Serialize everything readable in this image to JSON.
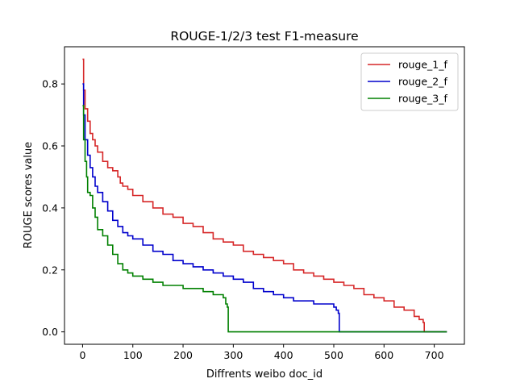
{
  "chart_data": {
    "type": "line",
    "title": "ROUGE-1/2/3 test F1-measure",
    "xlabel": "Diffrents weibo doc_id",
    "ylabel": "ROUGE scores value",
    "xlim": [
      -36,
      760
    ],
    "ylim": [
      -0.04,
      0.92
    ],
    "xticks": [
      0,
      100,
      200,
      300,
      400,
      500,
      600,
      700
    ],
    "yticks": [
      0.0,
      0.2,
      0.4,
      0.6,
      0.8
    ],
    "ytick_labels": [
      "0.0",
      "0.2",
      "0.4",
      "0.6",
      "0.8"
    ],
    "grid": false,
    "legend_position": "top-right",
    "series": [
      {
        "name": "rouge_1_f",
        "color": "#d62728",
        "x": [
          0,
          2,
          5,
          10,
          15,
          20,
          25,
          30,
          40,
          50,
          60,
          70,
          75,
          80,
          90,
          100,
          120,
          140,
          160,
          180,
          200,
          220,
          240,
          260,
          280,
          300,
          320,
          340,
          360,
          380,
          400,
          420,
          440,
          460,
          480,
          500,
          520,
          540,
          560,
          580,
          600,
          620,
          640,
          660,
          670,
          678,
          680,
          725
        ],
        "y": [
          0.88,
          0.78,
          0.72,
          0.68,
          0.64,
          0.62,
          0.6,
          0.58,
          0.55,
          0.53,
          0.52,
          0.5,
          0.48,
          0.47,
          0.46,
          0.44,
          0.42,
          0.4,
          0.38,
          0.37,
          0.35,
          0.34,
          0.32,
          0.3,
          0.29,
          0.28,
          0.26,
          0.25,
          0.24,
          0.23,
          0.22,
          0.2,
          0.19,
          0.18,
          0.17,
          0.16,
          0.15,
          0.14,
          0.12,
          0.11,
          0.1,
          0.08,
          0.07,
          0.05,
          0.04,
          0.03,
          0.0,
          0.0
        ]
      },
      {
        "name": "rouge_2_f",
        "color": "#0000cc",
        "x": [
          0,
          2,
          5,
          10,
          15,
          20,
          25,
          30,
          40,
          50,
          60,
          70,
          80,
          90,
          100,
          120,
          140,
          160,
          180,
          200,
          220,
          240,
          260,
          280,
          300,
          320,
          340,
          360,
          380,
          400,
          420,
          440,
          460,
          480,
          500,
          505,
          509,
          511,
          725
        ],
        "y": [
          0.8,
          0.7,
          0.62,
          0.57,
          0.53,
          0.5,
          0.47,
          0.45,
          0.42,
          0.39,
          0.36,
          0.34,
          0.32,
          0.31,
          0.3,
          0.28,
          0.26,
          0.25,
          0.23,
          0.22,
          0.21,
          0.2,
          0.19,
          0.18,
          0.17,
          0.16,
          0.14,
          0.13,
          0.12,
          0.11,
          0.1,
          0.1,
          0.09,
          0.09,
          0.08,
          0.07,
          0.06,
          0.0,
          0.0
        ]
      },
      {
        "name": "rouge_3_f",
        "color": "#008000",
        "x": [
          0,
          2,
          5,
          8,
          10,
          15,
          20,
          25,
          30,
          40,
          50,
          60,
          70,
          80,
          90,
          100,
          120,
          140,
          160,
          180,
          200,
          220,
          240,
          260,
          270,
          280,
          285,
          288,
          290,
          725
        ],
        "y": [
          0.73,
          0.62,
          0.55,
          0.5,
          0.45,
          0.44,
          0.4,
          0.37,
          0.33,
          0.31,
          0.28,
          0.25,
          0.22,
          0.2,
          0.19,
          0.18,
          0.17,
          0.16,
          0.15,
          0.15,
          0.14,
          0.14,
          0.13,
          0.12,
          0.12,
          0.11,
          0.09,
          0.08,
          0.0,
          0.0
        ]
      }
    ]
  }
}
